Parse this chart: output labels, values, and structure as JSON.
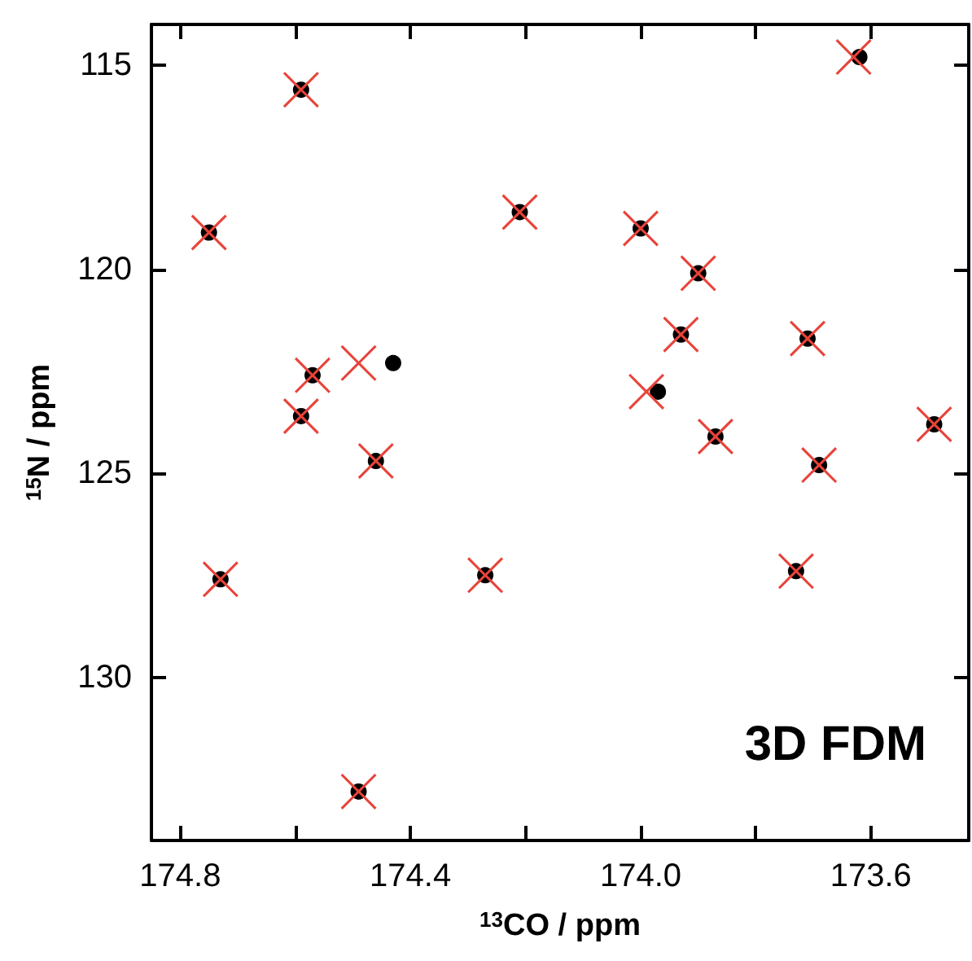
{
  "chart_data": {
    "type": "scatter",
    "xlabel": "$^{13}$CO / ppm",
    "ylabel": "$^{15}$N / ppm",
    "annotations": [
      "3D FDM"
    ],
    "xlim": [
      174.85,
      173.43
    ],
    "ylim": [
      134,
      114
    ],
    "xticks": [
      174.8,
      {
        "value": 174.6,
        "label": null
      },
      174.4,
      {
        "value": 174.2,
        "label": null
      },
      {
        "value": 174,
        "label": "174.0"
      },
      {
        "value": 173.8,
        "label": null
      },
      173.6
    ],
    "yticks": [
      115,
      120,
      125,
      130
    ],
    "grid": false,
    "series": [
      {
        "color": "#000000",
        "marker": "circle",
        "x": [
          174.59,
          174.75,
          174.21,
          174.0,
          173.9,
          173.93,
          173.71,
          173.62,
          174.57,
          174.43,
          174.59,
          174.46,
          173.97,
          173.87,
          173.69,
          173.49,
          174.73,
          174.27,
          173.73,
          174.49
        ],
        "values": [
          115.6,
          119.1,
          118.6,
          119.0,
          120.1,
          121.6,
          121.7,
          114.8,
          122.6,
          122.3,
          123.6,
          124.7,
          123.0,
          124.1,
          124.8,
          123.8,
          127.6,
          127.5,
          127.4,
          132.8
        ]
      },
      {
        "color": "#e8433a",
        "marker": "cross",
        "x": [
          174.59,
          174.75,
          174.21,
          174.0,
          173.9,
          173.93,
          173.71,
          173.63,
          174.57,
          174.49,
          174.59,
          174.46,
          173.99,
          173.87,
          173.69,
          173.49,
          174.73,
          174.27,
          173.73,
          174.49
        ],
        "values": [
          115.6,
          119.1,
          118.6,
          119.0,
          120.1,
          121.6,
          121.7,
          114.8,
          122.6,
          122.3,
          123.6,
          124.7,
          123.0,
          124.1,
          124.8,
          123.8,
          127.6,
          127.5,
          127.4,
          132.8
        ]
      }
    ]
  }
}
